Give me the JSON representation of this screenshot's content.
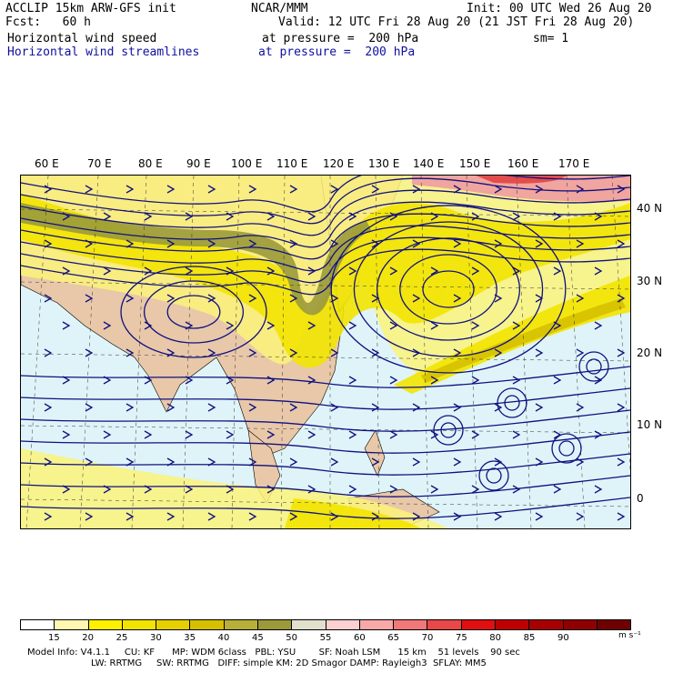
{
  "header": {
    "left_line1": "ACCLIP 15km ARW-GFS init",
    "left_line2": "Fcst:   60 h",
    "center_line1": "NCAR/MMM",
    "init": "Init: 00 UTC Wed 26 Aug 20",
    "valid": "Valid: 12 UTC Fri 28 Aug 20 (21 JST Fri 28 Aug 20)",
    "field1_name": "Horizontal wind speed",
    "field1_level": "at pressure =  200 hPa",
    "field1_sm": "sm= 1",
    "field2_name": "Horizontal wind streamlines",
    "field2_level": "at pressure =  200 hPa"
  },
  "map": {
    "lon_labels": [
      "60 E",
      "70 E",
      "80 E",
      "90 E",
      "100 E",
      "110 E",
      "120 E",
      "130 E",
      "140 E",
      "150 E",
      "160 E",
      "170 E"
    ],
    "lat_labels": [
      "40 N",
      "30 N",
      "20 N",
      "10 N",
      "0"
    ],
    "colors": {
      "ocean_bg": "#dff4f8",
      "land": "#e8c8a8",
      "jet_core": "#9a9a3a",
      "jet_mid": "#d6c000",
      "jet_edge": "#f2e400",
      "jet_light": "#fbf27a",
      "jet_pink": "#f0a0a0",
      "jet_red": "#e04848",
      "streamline": "#101080",
      "coast": "#000000"
    }
  },
  "colorbar": {
    "ticks": [
      "15",
      "20",
      "25",
      "30",
      "35",
      "40",
      "45",
      "50",
      "55",
      "60",
      "65",
      "70",
      "75",
      "80",
      "85",
      "90"
    ],
    "unit": "m s⁻¹",
    "colors": [
      "#ffffff",
      "#fff6b0",
      "#fff000",
      "#f2e400",
      "#e6d000",
      "#d6c000",
      "#b8ae3a",
      "#9a9a3a",
      "#e0e0cc",
      "#fcd0d0",
      "#f8a8a8",
      "#f07878",
      "#e84848",
      "#e01010",
      "#c00000",
      "#a80000",
      "#900000",
      "#700000"
    ]
  },
  "footer": {
    "line1": "Model Info: V4.1.1     CU: KF      MP: WDM 6class   PBL: YSU        SF: Noah LSM      15 km    51 levels    90 sec",
    "line2": "LW: RRTMG     SW: RRTMG   DIFF: simple KM: 2D Smagor DAMP: Rayleigh3  SFLAY: MM5"
  }
}
